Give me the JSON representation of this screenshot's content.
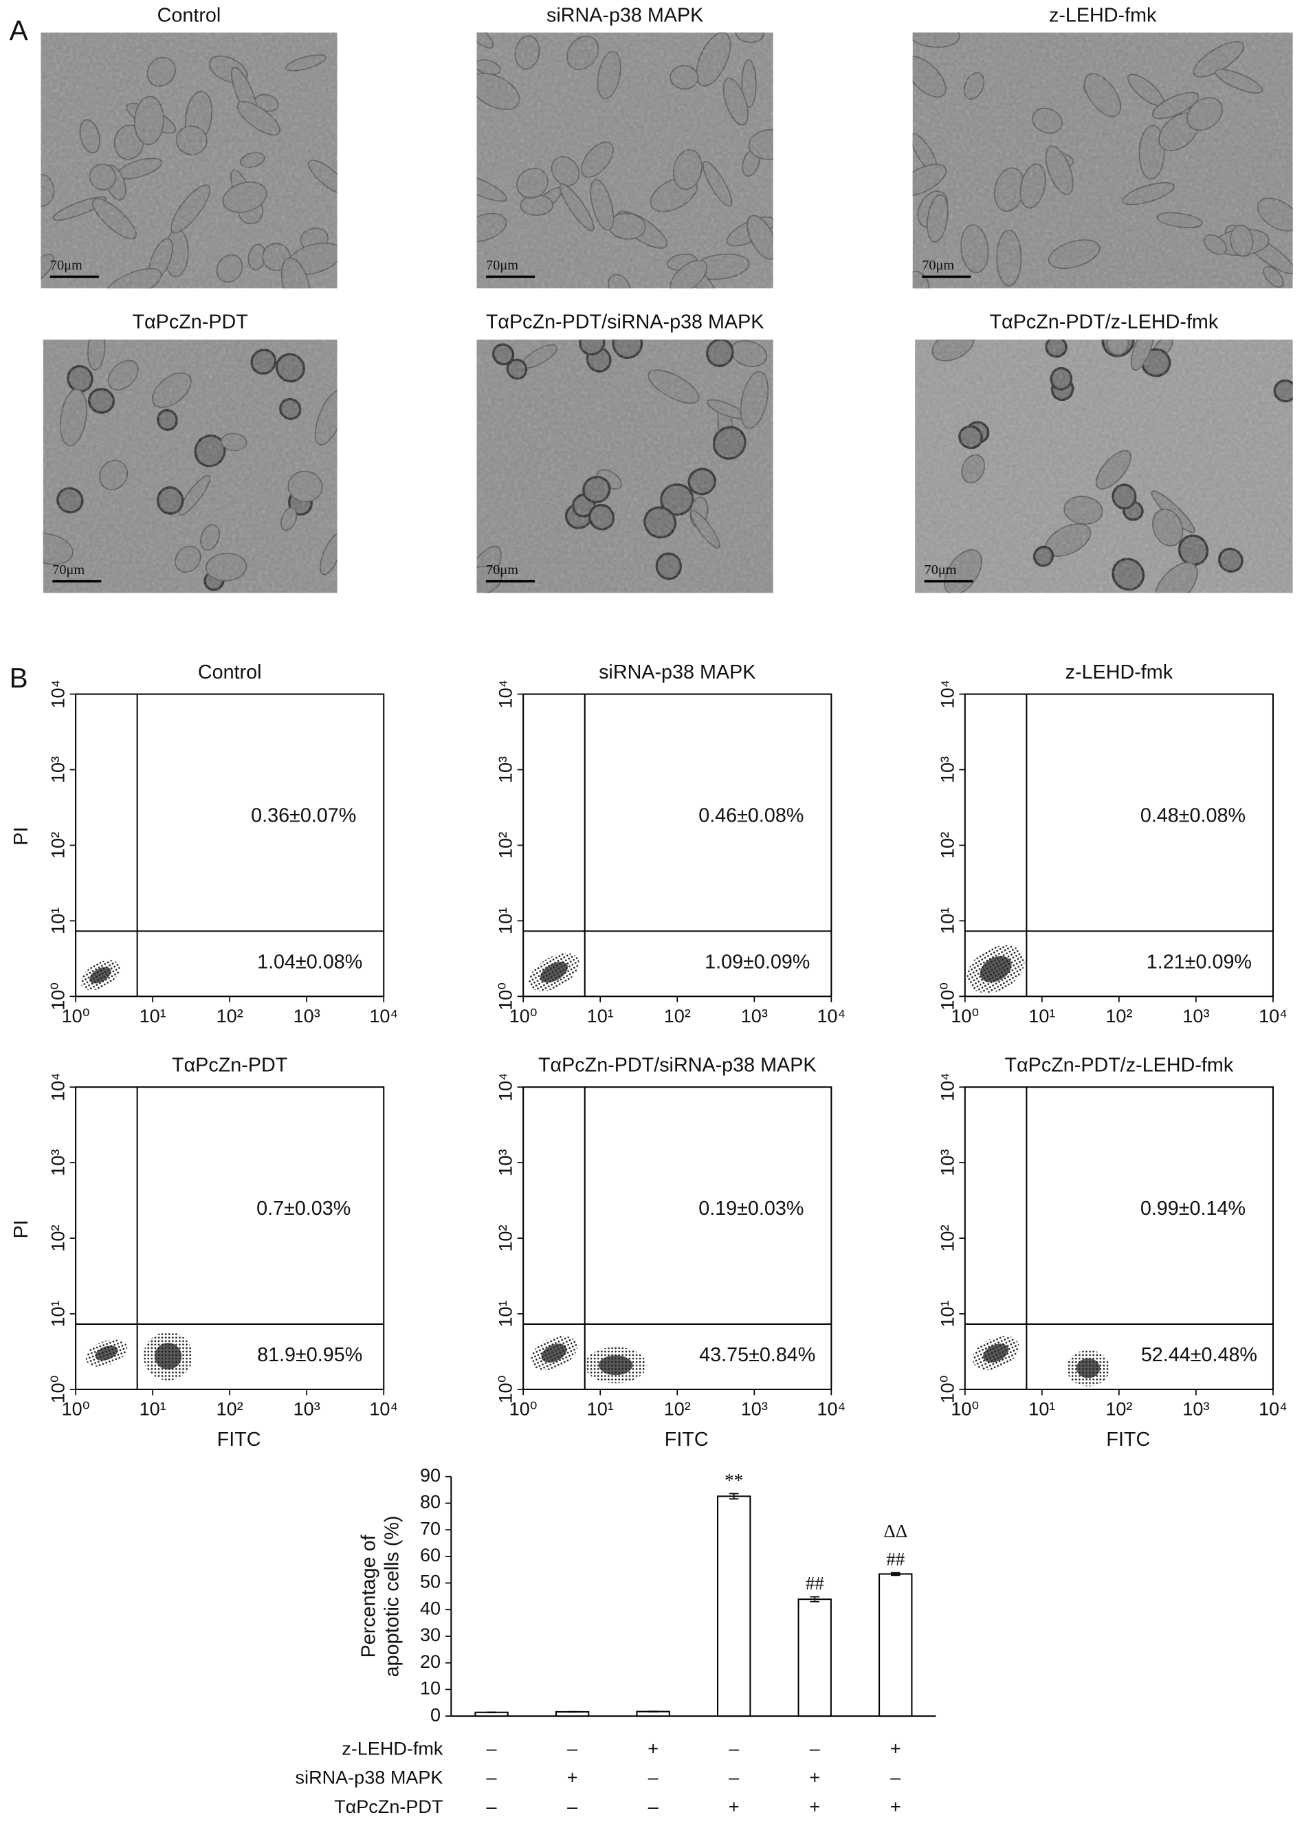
{
  "panel_a": {
    "label": "A",
    "scale_bar": "70μm",
    "images": [
      {
        "title": "Control"
      },
      {
        "title": "siRNA-p38 MAPK"
      },
      {
        "title": "z-LEHD-fmk"
      },
      {
        "title": "TαPcZn-PDT"
      },
      {
        "title": "TαPcZn-PDT/siRNA-p38 MAPK"
      },
      {
        "title": "TαPcZn-PDT/z-LEHD-fmk"
      }
    ]
  },
  "panel_b": {
    "label": "B",
    "flow": {
      "xlabel": "FITC",
      "ylabel": "PI",
      "log_scale": true,
      "xlim": [
        1,
        10000
      ],
      "ylim": [
        1,
        10000
      ],
      "xticks": [
        {
          "value": 1,
          "label": "10⁰"
        },
        {
          "value": 10,
          "label": "10¹"
        },
        {
          "value": 100,
          "label": "10²"
        },
        {
          "value": 1000,
          "label": "10³"
        },
        {
          "value": 10000,
          "label": "10⁴"
        }
      ],
      "yticks": [
        {
          "value": 1,
          "label": "10⁰"
        },
        {
          "value": 10,
          "label": "10¹"
        },
        {
          "value": 100,
          "label": "10²"
        },
        {
          "value": 1000,
          "label": "10³"
        },
        {
          "value": 10000,
          "label": "10⁴"
        }
      ],
      "gates": {
        "x": 6.3,
        "y": 7.3
      },
      "plots": [
        {
          "title": "Control",
          "upper_right": "0.36±0.07%",
          "lower_right": "1.04±0.08%"
        },
        {
          "title": "siRNA-p38 MAPK",
          "upper_right": "0.46±0.08%",
          "lower_right": "1.09±0.09%"
        },
        {
          "title": "z-LEHD-fmk",
          "upper_right": "0.48±0.08%",
          "lower_right": "1.21±0.09%"
        },
        {
          "title": "TαPcZn-PDT",
          "upper_right": "0.7±0.03%",
          "lower_right": "81.9±0.95%"
        },
        {
          "title": "TαPcZn-PDT/siRNA-p38 MAPK",
          "upper_right": "0.19±0.03%",
          "lower_right": "43.75±0.84%"
        },
        {
          "title": "TαPcZn-PDT/z-LEHD-fmk",
          "upper_right": "0.99±0.14%",
          "lower_right": "52.44±0.48%"
        }
      ]
    }
  },
  "chart_data": {
    "type": "bar",
    "categories": [
      null,
      null,
      null,
      null,
      null,
      null
    ],
    "values": [
      1.4,
      1.6,
      1.7,
      82.6,
      43.9,
      53.4
    ],
    "errors": [
      0.1,
      0.1,
      0.1,
      1.0,
      0.9,
      0.5
    ],
    "color": "#ffffff",
    "ylim": [
      0,
      90
    ],
    "yticks": [
      0,
      10,
      20,
      30,
      40,
      50,
      60,
      70,
      80,
      90
    ],
    "ylabel": [
      "Percentage of",
      "apoptotic cells (%)"
    ],
    "annotations": [
      [
        null,
        null,
        null,
        "**",
        "##",
        "##"
      ],
      [
        null,
        null,
        null,
        null,
        null,
        "ΔΔ"
      ]
    ],
    "treatments": [
      {
        "name": "z-LEHD-fmk",
        "signs": [
          "–",
          "–",
          "+",
          "–",
          "–",
          "+"
        ]
      },
      {
        "name": "siRNA-p38 MAPK",
        "signs": [
          "–",
          "+",
          "–",
          "–",
          "+",
          "–"
        ]
      },
      {
        "name": "TαPcZn-PDT",
        "signs": [
          "–",
          "–",
          "–",
          "+",
          "+",
          "+"
        ]
      }
    ]
  }
}
